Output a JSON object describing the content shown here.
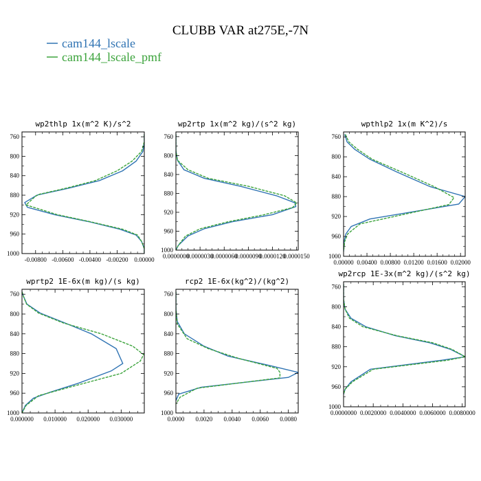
{
  "figure": {
    "title": "CLUBB VAR at275E,-7N"
  },
  "legend": [
    {
      "name": "cam144_lscale",
      "color": "#2f73b3"
    },
    {
      "name": "cam144_lscale_pmf",
      "color": "#3ba33b"
    }
  ],
  "chart_data": [
    {
      "type": "line",
      "title": "wp2thlp  1x(m^2 K)/s^2",
      "xlim": [
        -0.009,
        0.0
      ],
      "ylim": [
        1000,
        750
      ],
      "xticks": [
        -0.008,
        -0.006,
        -0.004,
        -0.002,
        0.0
      ],
      "xtick_labels": [
        "-0.00800",
        "-0.00600",
        "-0.00400",
        "-0.00200",
        "0.00000"
      ],
      "yticks": [
        760,
        800,
        840,
        880,
        920,
        960,
        1000
      ],
      "series": [
        {
          "name": "cam144_lscale",
          "x": [
            0.0,
            0.0,
            -0.0001,
            -0.0006,
            -0.0016,
            -0.0033,
            -0.0056,
            -0.0079,
            -0.0088,
            -0.0086,
            -0.0066,
            -0.004,
            -0.0018,
            -0.0006,
            -0.0002,
            0.0,
            0.0
          ],
          "y": [
            755,
            770,
            790,
            810,
            830,
            850,
            866,
            880,
            895,
            905,
            920,
            935,
            950,
            962,
            975,
            990,
            1000
          ]
        },
        {
          "name": "cam144_lscale_pmf",
          "x": [
            0.0,
            0.0,
            -0.0002,
            -0.0009,
            -0.002,
            -0.0036,
            -0.0058,
            -0.0077,
            -0.008,
            -0.0087,
            -0.0064,
            -0.0039,
            -0.0016,
            -0.0005,
            -0.0002,
            0.0,
            0.0
          ],
          "y": [
            755,
            770,
            790,
            810,
            830,
            850,
            866,
            878,
            882,
            900,
            920,
            935,
            950,
            962,
            975,
            990,
            1000
          ]
        }
      ]
    },
    {
      "type": "line",
      "title": "wp2rtp  1x(m^2 kg)/(s^2 kg)",
      "xlim": [
        0.0,
        1.52e-05
      ],
      "ylim": [
        1000,
        750
      ],
      "xticks": [
        0.0,
        3e-06,
        6e-06,
        9e-06,
        1.2e-05,
        1.5e-05
      ],
      "xtick_labels": [
        "0.0000000",
        "0.0000030",
        "0.0000060",
        "0.0000090",
        "0.0000120",
        "0.0000150"
      ],
      "yticks": [
        760,
        800,
        840,
        880,
        920,
        960,
        1000
      ],
      "series": [
        {
          "name": "cam144_lscale",
          "x": [
            0.0,
            0.0,
            2e-07,
            1e-06,
            3.5e-06,
            8e-06,
            1.25e-05,
            1.48e-05,
            1.49e-05,
            1.2e-05,
            7e-06,
            3.5e-06,
            1.5e-06,
            3e-07,
            0.0
          ],
          "y": [
            755,
            790,
            810,
            830,
            848,
            865,
            885,
            900,
            908,
            925,
            940,
            955,
            970,
            990,
            1000
          ]
        },
        {
          "name": "cam144_lscale_pmf",
          "x": [
            0.0,
            0.0,
            2e-07,
            1.5e-06,
            4e-06,
            9e-06,
            1.35e-05,
            1.5e-05,
            1.45e-05,
            1.1e-05,
            6.5e-06,
            3e-06,
            1.2e-06,
            3e-07,
            0.0
          ],
          "y": [
            755,
            790,
            810,
            830,
            848,
            865,
            885,
            900,
            910,
            925,
            940,
            955,
            970,
            990,
            1000
          ]
        }
      ]
    },
    {
      "type": "line",
      "title": "wpthlp2  1x(m K^2)/s",
      "xlim": [
        0.0,
        0.0208
      ],
      "ylim": [
        1000,
        750
      ],
      "xticks": [
        0.0,
        0.004,
        0.008,
        0.012,
        0.016,
        0.02
      ],
      "xtick_labels": [
        "0.00000",
        "0.00400",
        "0.00800",
        "0.01200",
        "0.01600",
        "0.02000"
      ],
      "yticks": [
        760,
        800,
        840,
        880,
        920,
        960,
        1000
      ],
      "series": [
        {
          "name": "cam144_lscale",
          "x": [
            0.0002,
            0.0006,
            0.0019,
            0.0045,
            0.009,
            0.0148,
            0.0208,
            0.0197,
            0.0045,
            0.0013,
            0.0004,
            0.0001,
            0.0
          ],
          "y": [
            755,
            770,
            785,
            805,
            830,
            860,
            880,
            895,
            925,
            940,
            955,
            970,
            990
          ]
        },
        {
          "name": "cam144_lscale_pmf",
          "x": [
            0.0003,
            0.0009,
            0.0024,
            0.0049,
            0.0098,
            0.0155,
            0.0189,
            0.018,
            0.0106,
            0.0028,
            0.0007,
            0.0002,
            0.0
          ],
          "y": [
            755,
            770,
            785,
            805,
            830,
            860,
            882,
            896,
            915,
            935,
            955,
            970,
            990
          ]
        }
      ]
    },
    {
      "type": "line",
      "title": "wprtp2  1E-6x(m kg)/(s kg)",
      "xlim": [
        0.0,
        0.037
      ],
      "ylim": [
        1000,
        750
      ],
      "xticks": [
        0.0,
        0.01,
        0.02,
        0.03
      ],
      "xtick_labels": [
        "0.000000",
        "0.010000",
        "0.020000",
        "0.030000"
      ],
      "yticks": [
        760,
        800,
        840,
        880,
        920,
        960,
        1000
      ],
      "series": [
        {
          "name": "cam144_lscale",
          "x": [
            0.0,
            0.0005,
            0.0015,
            0.0055,
            0.013,
            0.021,
            0.0285,
            0.0305,
            0.027,
            0.017,
            0.0085,
            0.0035,
            0.001,
            0.0
          ],
          "y": [
            755,
            765,
            780,
            798,
            818,
            840,
            870,
            900,
            915,
            940,
            958,
            970,
            985,
            1000
          ]
        },
        {
          "name": "cam144_lscale_pmf",
          "x": [
            0.0,
            0.0005,
            0.0014,
            0.005,
            0.0125,
            0.024,
            0.0335,
            0.0368,
            0.0358,
            0.03,
            0.016,
            0.005,
            0.0012,
            0.0
          ],
          "y": [
            755,
            765,
            780,
            798,
            818,
            840,
            865,
            882,
            895,
            920,
            945,
            965,
            985,
            1000
          ]
        }
      ]
    },
    {
      "type": "line",
      "title": "rcp2  1E-6x(kg^2)/(kg^2)",
      "xlim": [
        0.0,
        0.0087
      ],
      "ylim": [
        1000,
        750
      ],
      "xticks": [
        0.0,
        0.002,
        0.004,
        0.006,
        0.008
      ],
      "xtick_labels": [
        "0.0000",
        "0.0020",
        "0.0040",
        "0.0060",
        "0.0080"
      ],
      "yticks": [
        760,
        800,
        840,
        880,
        920,
        960,
        1000
      ],
      "series": [
        {
          "name": "cam144_lscale",
          "x": [
            0.0,
            0.0,
            0.0001,
            0.0006,
            0.002,
            0.0037,
            0.0068,
            0.0087,
            0.008,
            0.0018,
            0.0002,
            0.0
          ],
          "y": [
            755,
            790,
            815,
            840,
            865,
            885,
            905,
            918,
            928,
            948,
            962,
            975
          ]
        },
        {
          "name": "cam144_lscale_pmf",
          "x": [
            0.0,
            0.0,
            0.0001,
            0.0008,
            0.0023,
            0.0045,
            0.0072,
            0.0074,
            0.0074,
            0.0015,
            0.0003,
            0.0
          ],
          "y": [
            755,
            790,
            820,
            850,
            870,
            890,
            910,
            918,
            929,
            950,
            968,
            982
          ]
        }
      ]
    },
    {
      "type": "line",
      "title": "wp2rcp  1E-3x(m^2 kg)/(s^2 kg)",
      "xlim": [
        0.0,
        0.0082
      ],
      "ylim": [
        1000,
        750
      ],
      "xticks": [
        0.0,
        0.002,
        0.004,
        0.006,
        0.008
      ],
      "xtick_labels": [
        "0.0000000",
        "0.0020000",
        "0.0040000",
        "0.0060000",
        "0.0080000"
      ],
      "yticks": [
        760,
        800,
        840,
        880,
        920,
        960,
        1000
      ],
      "series": [
        {
          "name": "cam144_lscale",
          "x": [
            0.0,
            0.0,
            0.0001,
            0.0005,
            0.0015,
            0.0035,
            0.0058,
            0.0072,
            0.0082,
            0.0066,
            0.0018,
            0.0005,
            0.0001,
            0.0
          ],
          "y": [
            755,
            785,
            805,
            823,
            840,
            858,
            872,
            885,
            900,
            907,
            925,
            950,
            965,
            975
          ]
        },
        {
          "name": "cam144_lscale_pmf",
          "x": [
            0.0,
            0.0,
            0.0001,
            0.0004,
            0.0013,
            0.0036,
            0.006,
            0.0073,
            0.0082,
            0.007,
            0.002,
            0.0006,
            0.0001,
            0.0
          ],
          "y": [
            755,
            785,
            805,
            823,
            840,
            858,
            872,
            885,
            900,
            907,
            925,
            950,
            965,
            975
          ]
        }
      ]
    }
  ]
}
